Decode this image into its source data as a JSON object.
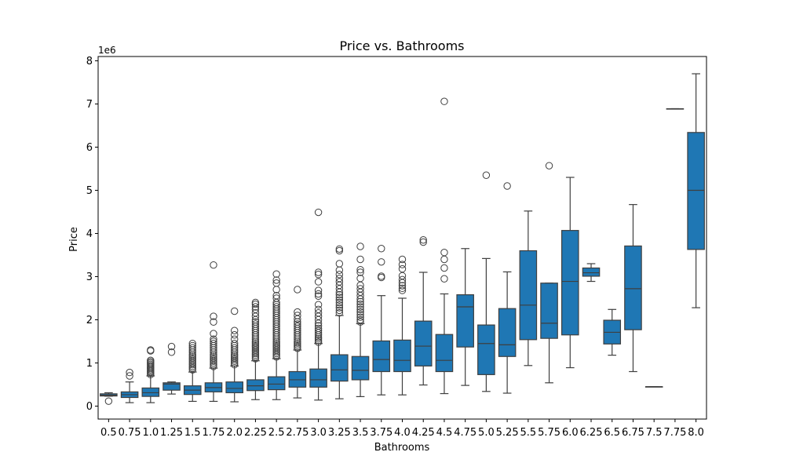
{
  "chart_data": {
    "type": "box",
    "title": "Price vs. Bathrooms",
    "xlabel": "Bathrooms",
    "ylabel": "Price",
    "y_offset_label": "1e6",
    "y_scale": 1000000,
    "ylim": [
      -300000,
      8100000
    ],
    "y_ticks": [
      0,
      1000000,
      2000000,
      3000000,
      4000000,
      5000000,
      6000000,
      7000000,
      8000000
    ],
    "y_tick_labels": [
      "0",
      "1",
      "2",
      "3",
      "4",
      "5",
      "6",
      "7",
      "8"
    ],
    "grid": false,
    "box_color": "#1f77b4",
    "line_color": "#3f3f3f",
    "categories": [
      "0.5",
      "0.75",
      "1.0",
      "1.25",
      "1.5",
      "1.75",
      "2.0",
      "2.25",
      "2.5",
      "2.75",
      "3.0",
      "3.25",
      "3.5",
      "3.75",
      "4.0",
      "4.25",
      "4.5",
      "4.75",
      "5.0",
      "5.25",
      "5.5",
      "5.75",
      "6.0",
      "6.25",
      "6.5",
      "6.75",
      "7.5",
      "7.75",
      "8.0"
    ],
    "boxes": [
      {
        "category": "0.5",
        "whislo": 230000,
        "q1": 235000,
        "med": 255000,
        "q3": 285000,
        "whishi": 310000,
        "fliers": [
          115000
        ]
      },
      {
        "category": "0.75",
        "whislo": 80000,
        "q1": 200000,
        "med": 265000,
        "q3": 330000,
        "whishi": 560000,
        "fliers": [
          700000,
          780000
        ]
      },
      {
        "category": "1.0",
        "whislo": 80000,
        "q1": 225000,
        "med": 310000,
        "q3": 420000,
        "whishi": 700000,
        "fliers": [
          730000,
          760000,
          790000,
          820000,
          850000,
          880000,
          910000,
          940000,
          970000,
          1000000,
          1030000,
          1060000,
          1280000,
          1300000
        ]
      },
      {
        "category": "1.25",
        "whislo": 280000,
        "q1": 370000,
        "med": 510000,
        "q3": 540000,
        "whishi": 560000,
        "fliers": [
          1250000,
          1380000
        ]
      },
      {
        "category": "1.5",
        "whislo": 110000,
        "q1": 270000,
        "med": 370000,
        "q3": 470000,
        "whishi": 790000,
        "fliers": [
          840000,
          880000,
          920000,
          960000,
          1000000,
          1040000,
          1080000,
          1120000,
          1160000,
          1200000,
          1250000,
          1300000,
          1350000,
          1400000,
          1450000
        ]
      },
      {
        "category": "1.75",
        "whislo": 110000,
        "q1": 330000,
        "med": 430000,
        "q3": 540000,
        "whishi": 880000,
        "fliers": [
          920000,
          960000,
          1000000,
          1040000,
          1080000,
          1120000,
          1160000,
          1200000,
          1250000,
          1300000,
          1350000,
          1400000,
          1450000,
          1500000,
          1550000,
          1680000,
          1950000,
          2080000,
          3270000
        ]
      },
      {
        "category": "2.0",
        "whislo": 100000,
        "q1": 310000,
        "med": 410000,
        "q3": 560000,
        "whishi": 930000,
        "fliers": [
          960000,
          1000000,
          1040000,
          1080000,
          1120000,
          1160000,
          1200000,
          1250000,
          1300000,
          1350000,
          1400000,
          1450000,
          1550000,
          1650000,
          1750000,
          2200000
        ]
      },
      {
        "category": "2.25",
        "whislo": 150000,
        "q1": 360000,
        "med": 470000,
        "q3": 610000,
        "whishi": 1050000,
        "fliers": [
          1100000,
          1140000,
          1180000,
          1220000,
          1260000,
          1300000,
          1340000,
          1380000,
          1420000,
          1460000,
          1500000,
          1550000,
          1600000,
          1650000,
          1700000,
          1750000,
          1800000,
          1850000,
          1900000,
          1950000,
          2000000,
          2080000,
          2160000,
          2240000,
          2300000,
          2360000,
          2400000
        ]
      },
      {
        "category": "2.5",
        "whislo": 150000,
        "q1": 380000,
        "med": 510000,
        "q3": 680000,
        "whishi": 1100000,
        "fliers": [
          1140000,
          1180000,
          1220000,
          1260000,
          1300000,
          1340000,
          1380000,
          1420000,
          1460000,
          1500000,
          1550000,
          1600000,
          1650000,
          1700000,
          1750000,
          1800000,
          1850000,
          1900000,
          1950000,
          2000000,
          2050000,
          2100000,
          2150000,
          2200000,
          2250000,
          2300000,
          2350000,
          2400000,
          2500000,
          2560000,
          2700000,
          2850000,
          2920000,
          3060000
        ]
      },
      {
        "category": "2.75",
        "whislo": 190000,
        "q1": 440000,
        "med": 610000,
        "q3": 800000,
        "whishi": 1300000,
        "fliers": [
          1340000,
          1380000,
          1420000,
          1460000,
          1500000,
          1550000,
          1600000,
          1650000,
          1700000,
          1750000,
          1800000,
          1850000,
          1900000,
          1950000,
          2020000,
          2100000,
          2180000,
          2700000
        ]
      },
      {
        "category": "3.0",
        "whislo": 140000,
        "q1": 440000,
        "med": 610000,
        "q3": 860000,
        "whishi": 1450000,
        "fliers": [
          1480000,
          1520000,
          1560000,
          1600000,
          1650000,
          1700000,
          1750000,
          1800000,
          1860000,
          1920000,
          2000000,
          2080000,
          2160000,
          2240000,
          2350000,
          2550000,
          2600000,
          2680000,
          2880000,
          3050000,
          3100000,
          4490000
        ]
      },
      {
        "category": "3.25",
        "whislo": 170000,
        "q1": 580000,
        "med": 840000,
        "q3": 1190000,
        "whishi": 2100000,
        "fliers": [
          2160000,
          2220000,
          2280000,
          2340000,
          2400000,
          2460000,
          2520000,
          2580000,
          2640000,
          2720000,
          2800000,
          2880000,
          2960000,
          3050000,
          3150000,
          3300000,
          3600000,
          3640000
        ]
      },
      {
        "category": "3.5",
        "whislo": 220000,
        "q1": 610000,
        "med": 830000,
        "q3": 1150000,
        "whishi": 1910000,
        "fliers": [
          1950000,
          2000000,
          2060000,
          2120000,
          2180000,
          2240000,
          2300000,
          2360000,
          2420000,
          2480000,
          2560000,
          2640000,
          2720000,
          2800000,
          2960000,
          3100000,
          3160000,
          3400000,
          3700000
        ]
      },
      {
        "category": "3.75",
        "whislo": 260000,
        "q1": 800000,
        "med": 1080000,
        "q3": 1510000,
        "whishi": 2560000,
        "fliers": [
          2980000,
          3010000,
          3340000,
          3650000
        ]
      },
      {
        "category": "4.0",
        "whislo": 260000,
        "q1": 800000,
        "med": 1060000,
        "q3": 1530000,
        "whishi": 2500000,
        "fliers": [
          2680000,
          2730000,
          2790000,
          2860000,
          2930000,
          3020000,
          3180000,
          3280000,
          3400000
        ]
      },
      {
        "category": "4.25",
        "whislo": 490000,
        "q1": 930000,
        "med": 1390000,
        "q3": 1970000,
        "whishi": 3100000,
        "fliers": [
          3800000,
          3850000
        ]
      },
      {
        "category": "4.5",
        "whislo": 290000,
        "q1": 800000,
        "med": 1060000,
        "q3": 1660000,
        "whishi": 2600000,
        "fliers": [
          2950000,
          3200000,
          3400000,
          3560000,
          7060000
        ]
      },
      {
        "category": "4.75",
        "whislo": 480000,
        "q1": 1370000,
        "med": 2300000,
        "q3": 2580000,
        "whishi": 3650000,
        "fliers": []
      },
      {
        "category": "5.0",
        "whislo": 340000,
        "q1": 730000,
        "med": 1450000,
        "q3": 1880000,
        "whishi": 3420000,
        "fliers": [
          5350000
        ]
      },
      {
        "category": "5.25",
        "whislo": 300000,
        "q1": 1150000,
        "med": 1420000,
        "q3": 2260000,
        "whishi": 3110000,
        "fliers": [
          5100000
        ]
      },
      {
        "category": "5.5",
        "whislo": 940000,
        "q1": 1540000,
        "med": 2340000,
        "q3": 3600000,
        "whishi": 4520000,
        "fliers": []
      },
      {
        "category": "5.75",
        "whislo": 540000,
        "q1": 1570000,
        "med": 1920000,
        "q3": 2850000,
        "whishi": 2850000,
        "fliers": [
          5570000
        ]
      },
      {
        "category": "6.0",
        "whislo": 890000,
        "q1": 1650000,
        "med": 2890000,
        "q3": 4070000,
        "whishi": 5300000,
        "fliers": []
      },
      {
        "category": "6.25",
        "whislo": 2890000,
        "q1": 3010000,
        "med": 3090000,
        "q3": 3200000,
        "whishi": 3300000,
        "fliers": []
      },
      {
        "category": "6.5",
        "whislo": 1180000,
        "q1": 1440000,
        "med": 1710000,
        "q3": 1990000,
        "whishi": 2240000,
        "fliers": []
      },
      {
        "category": "6.75",
        "whislo": 800000,
        "q1": 1770000,
        "med": 2720000,
        "q3": 3710000,
        "whishi": 4670000,
        "fliers": []
      },
      {
        "category": "7.5",
        "whislo": 450000,
        "q1": 450000,
        "med": 450000,
        "q3": 450000,
        "whishi": 450000,
        "fliers": []
      },
      {
        "category": "7.75",
        "whislo": 6890000,
        "q1": 6890000,
        "med": 6890000,
        "q3": 6890000,
        "whishi": 6890000,
        "fliers": []
      },
      {
        "category": "8.0",
        "whislo": 2280000,
        "q1": 3630000,
        "med": 5000000,
        "q3": 6340000,
        "whishi": 7700000,
        "fliers": []
      }
    ]
  }
}
